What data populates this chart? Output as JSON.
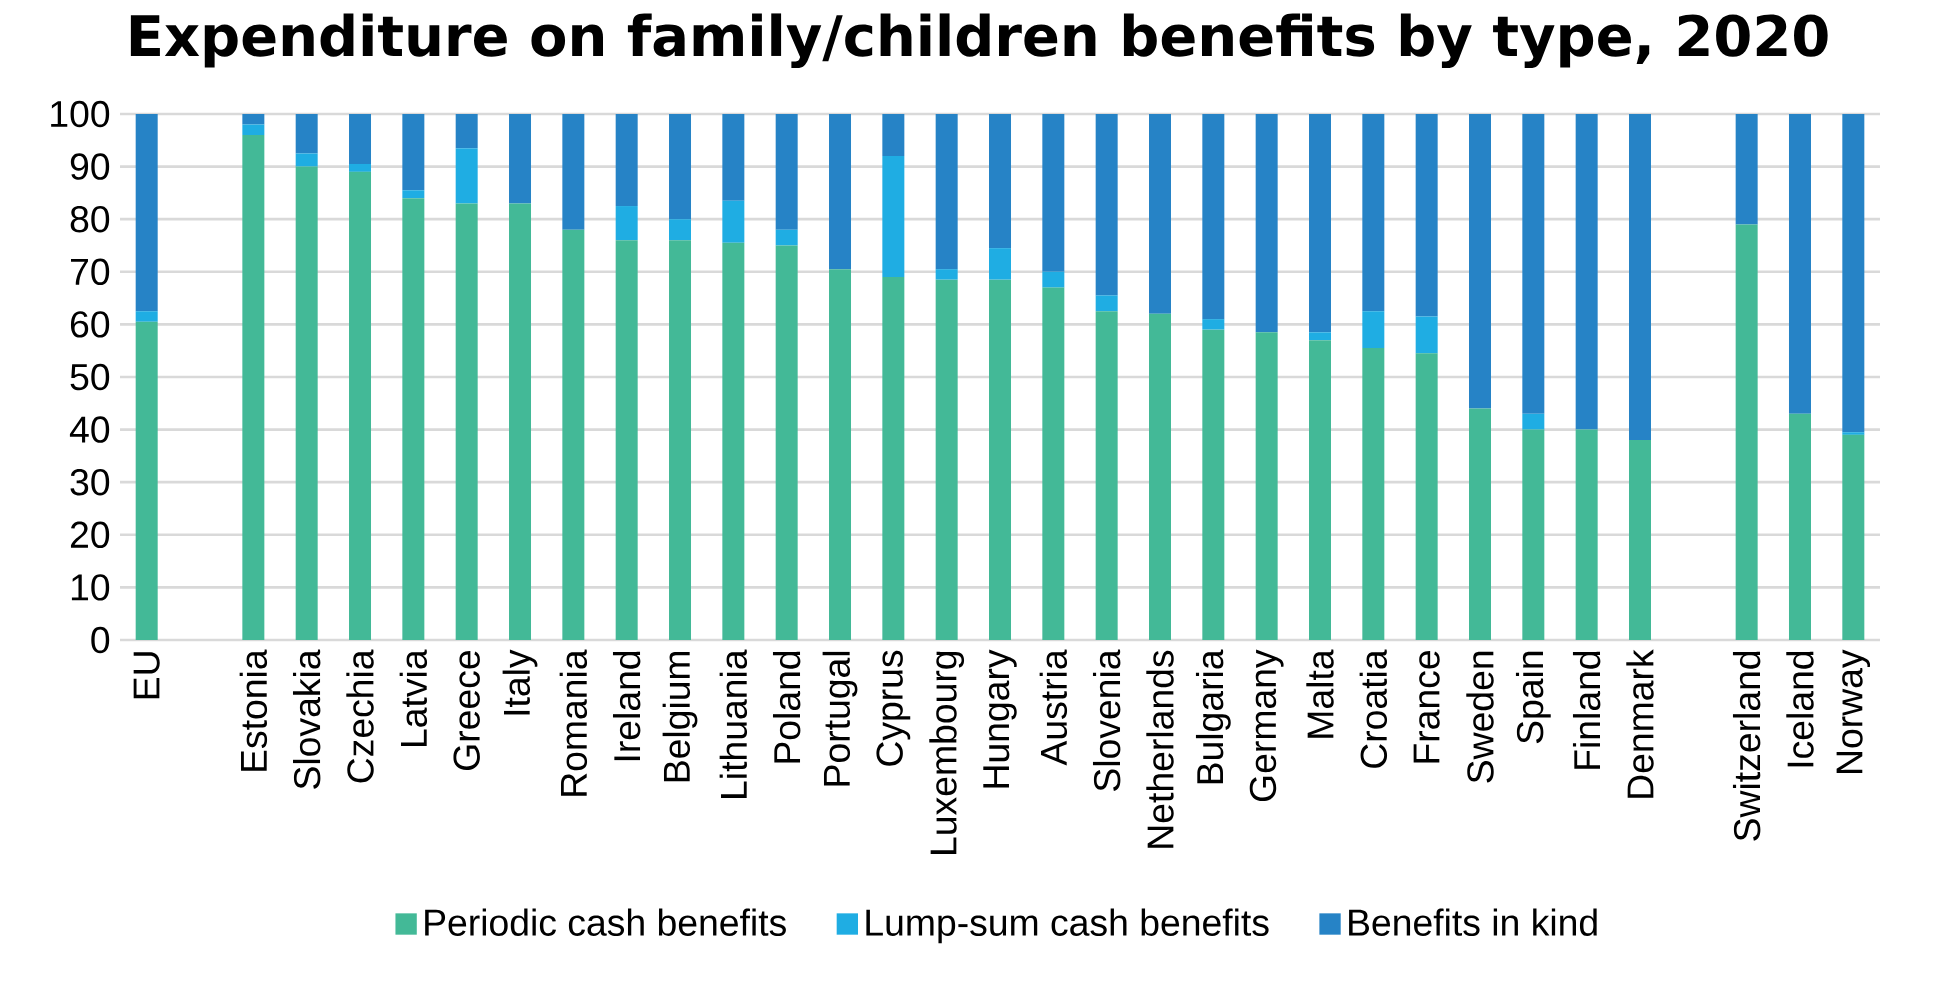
{
  "chart_data": {
    "type": "bar",
    "stacked": true,
    "title": "Expenditure on family/children benefits by type, 2020",
    "categories": [
      "EU",
      null,
      "Estonia",
      "Slovakia",
      "Czechia",
      "Latvia",
      "Greece",
      "Italy",
      "Romania",
      "Ireland",
      "Belgium",
      "Lithuania",
      "Poland",
      "Portugal",
      "Cyprus",
      "Luxembourg",
      "Hungary",
      "Austria",
      "Slovenia",
      "Netherlands",
      "Bulgaria",
      "Germany",
      "Malta",
      "Croatia",
      "France",
      "Sweden",
      "Spain",
      "Finland",
      "Denmark",
      null,
      "Switzerland",
      "Iceland",
      "Norway"
    ],
    "series": [
      {
        "name": "Periodic cash benefits",
        "color": "#43b997",
        "values": [
          60.5,
          null,
          96,
          90,
          89,
          84,
          83,
          83,
          78,
          76,
          76,
          75.5,
          75,
          70.5,
          69,
          68.5,
          68.5,
          67,
          62.5,
          62,
          59,
          58.5,
          57,
          55.5,
          54.5,
          44,
          40,
          40,
          38,
          null,
          79,
          43,
          39
        ]
      },
      {
        "name": "Lump-sum cash benefits",
        "color": "#1fade3",
        "values": [
          2,
          null,
          2,
          2.5,
          1.5,
          1.5,
          10.5,
          0,
          0,
          6.5,
          4,
          8,
          3,
          0,
          23,
          2,
          6,
          3,
          3,
          0,
          2,
          0,
          1.5,
          7,
          7,
          0,
          3,
          0,
          0,
          null,
          0,
          0,
          0.5
        ]
      },
      {
        "name": "Benefits in kind",
        "color": "#2683c6",
        "values": [
          37.5,
          null,
          2,
          7.5,
          9.5,
          14.5,
          6.5,
          17,
          22,
          17.5,
          20,
          16.5,
          22,
          29.5,
          8,
          29.5,
          25.5,
          30,
          34.5,
          38,
          39,
          41.5,
          41.5,
          37.5,
          38.5,
          56,
          57,
          60,
          62,
          null,
          21,
          57,
          60.5
        ]
      }
    ],
    "ylim": [
      0,
      100
    ],
    "yticks": [
      0,
      10,
      20,
      30,
      40,
      50,
      60,
      70,
      80,
      90,
      100
    ],
    "grid": "y",
    "legend": "bottom"
  }
}
